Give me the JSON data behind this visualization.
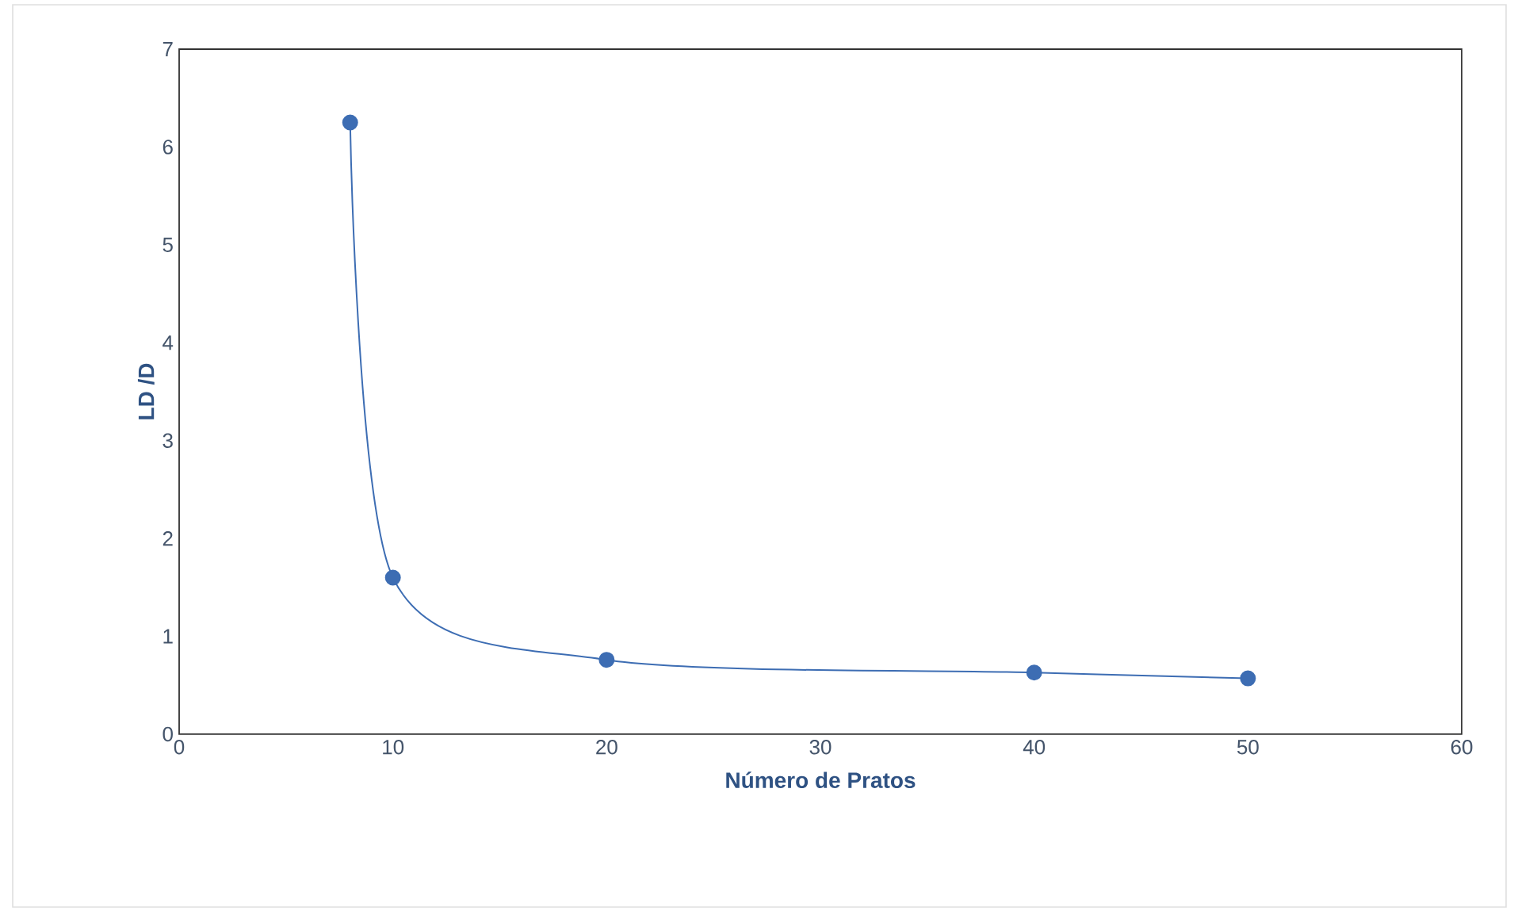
{
  "chart_data": {
    "type": "line",
    "xlabel": "Número de Pratos",
    "ylabel": "LD /D",
    "x": [
      8,
      10,
      20,
      40,
      50
    ],
    "values": [
      6.25,
      1.6,
      0.76,
      0.63,
      0.57
    ],
    "color": "#3d6db3",
    "marker": "circle",
    "line_style": "solid",
    "xlim": [
      0,
      60
    ],
    "xticks": [
      0,
      10,
      20,
      30,
      40,
      50,
      60
    ],
    "ylim": [
      0,
      7
    ],
    "yticks": [
      0,
      1,
      2,
      3,
      4,
      5,
      6,
      7
    ],
    "grid": false
  }
}
